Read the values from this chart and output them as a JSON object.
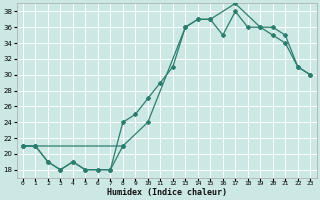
{
  "title": "",
  "xlabel": "Humidex (Indice chaleur)",
  "ylabel": "",
  "bg_color": "#cce8e4",
  "grid_color": "#ffffff",
  "line_color": "#2d7d6f",
  "ylim": [
    17,
    39
  ],
  "xlim": [
    -0.5,
    23.5
  ],
  "yticks": [
    18,
    20,
    22,
    24,
    26,
    28,
    30,
    32,
    34,
    36,
    38
  ],
  "xticks": [
    0,
    1,
    2,
    3,
    4,
    5,
    6,
    7,
    8,
    9,
    10,
    11,
    12,
    13,
    14,
    15,
    16,
    17,
    18,
    19,
    20,
    21,
    22,
    23
  ],
  "xtick_labels": [
    "0",
    "1",
    "2",
    "3",
    "4",
    "5",
    "6",
    "7",
    "8",
    "9",
    "10",
    "11",
    "12",
    "13",
    "14",
    "15",
    "16",
    "17",
    "18",
    "19",
    "20",
    "21",
    "22",
    "23"
  ],
  "line1_x": [
    0,
    1,
    2,
    3,
    4,
    5,
    6,
    7,
    8
  ],
  "line1_y": [
    21,
    21,
    19,
    18,
    19,
    18,
    18,
    18,
    21
  ],
  "line2_x": [
    0,
    1,
    2,
    3,
    4,
    5,
    6,
    7,
    8,
    9,
    10,
    11,
    12,
    13,
    14,
    15,
    16,
    17,
    18,
    19,
    20,
    21,
    22,
    23
  ],
  "line2_y": [
    21,
    21,
    19,
    18,
    19,
    18,
    18,
    18,
    24,
    25,
    27,
    29,
    31,
    36,
    37,
    37,
    35,
    38,
    36,
    36,
    35,
    34,
    31,
    30
  ],
  "line3_x": [
    0,
    1,
    8,
    10,
    13,
    14,
    15,
    17,
    19,
    20,
    21,
    22,
    23
  ],
  "line3_y": [
    21,
    21,
    21,
    24,
    36,
    37,
    37,
    39,
    36,
    36,
    35,
    31,
    30
  ],
  "figsize": [
    3.2,
    2.0
  ],
  "dpi": 100
}
